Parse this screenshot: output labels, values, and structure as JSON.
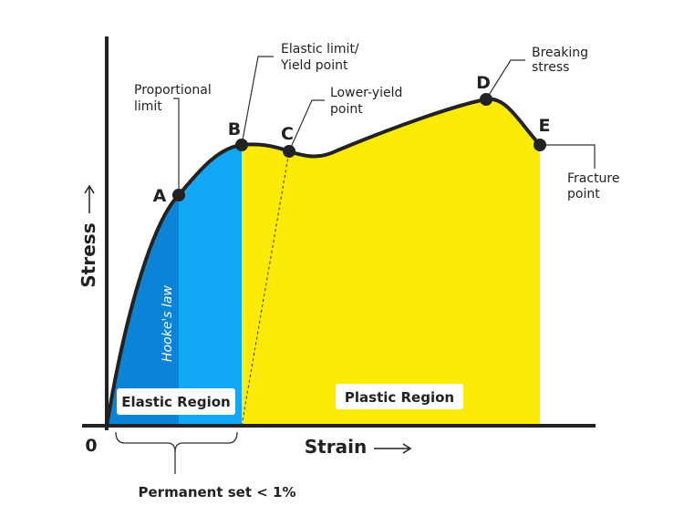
{
  "axes": {
    "origin": "0",
    "y_label": "Stress",
    "x_label": "Strain"
  },
  "points": [
    {
      "letter": "A",
      "label": [
        "Proportional",
        "limit"
      ]
    },
    {
      "letter": "B",
      "label": [
        "Elastic limit/",
        "Yield point"
      ]
    },
    {
      "letter": "C",
      "label": [
        "Lower-yield",
        "point"
      ]
    },
    {
      "letter": "D",
      "label": [
        "Breaking",
        "stress"
      ]
    },
    {
      "letter": "E",
      "label": [
        "Fracture",
        "point"
      ]
    }
  ],
  "regions": {
    "hooke": "Hooke's law",
    "elastic": "Elastic Region",
    "plastic": "Plastic Region"
  },
  "permanent_set": "Permanent set < 1%"
}
